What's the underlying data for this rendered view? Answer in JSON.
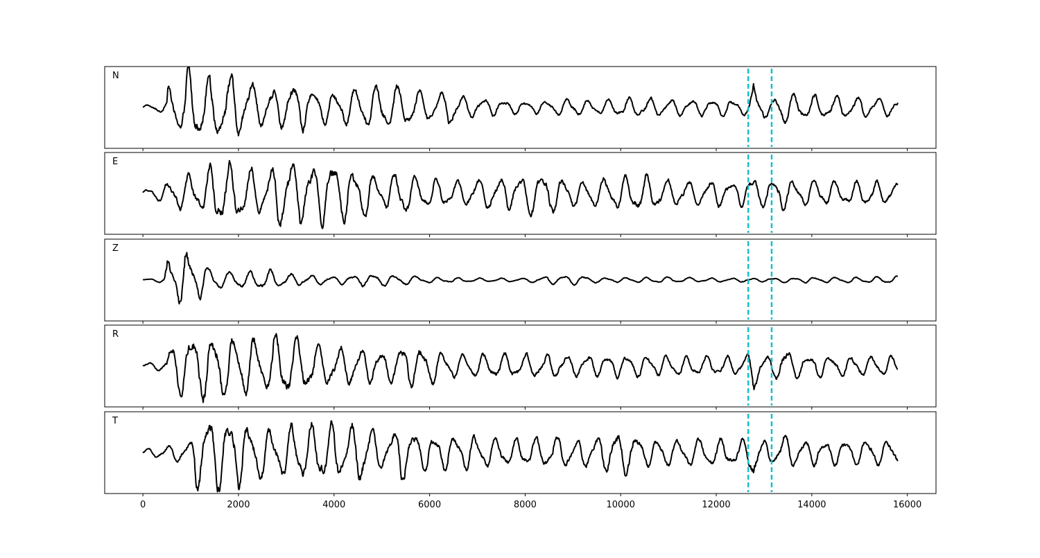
{
  "chart_data": {
    "type": "line",
    "title": "",
    "xlabel": "",
    "ylabel": "",
    "xlim": [
      -800,
      16600
    ],
    "x_ticks": [
      0,
      2000,
      4000,
      6000,
      8000,
      10000,
      12000,
      14000,
      16000
    ],
    "x_tick_labels": [
      "0",
      "2000",
      "4000",
      "6000",
      "8000",
      "10000",
      "12000",
      "14000",
      "16000"
    ],
    "x_range": [
      0,
      15800
    ],
    "grid": false,
    "line_color": "#000000",
    "marker_color": "#17becf",
    "markers": [
      {
        "style": "dashed",
        "x": 12670
      },
      {
        "style": "dashed",
        "x": 13160
      }
    ],
    "panels": [
      {
        "label": "N",
        "ylim": [
          -1,
          1
        ],
        "envelope": [
          [
            0,
            0.04
          ],
          [
            500,
            0.15
          ],
          [
            520,
            0.45
          ],
          [
            700,
            0.55
          ],
          [
            1000,
            0.9
          ],
          [
            1100,
            0.72
          ],
          [
            1600,
            0.72
          ],
          [
            2100,
            0.65
          ],
          [
            2500,
            0.42
          ],
          [
            3000,
            0.45
          ],
          [
            3100,
            0.6
          ],
          [
            3600,
            0.38
          ],
          [
            4000,
            0.32
          ],
          [
            4200,
            0.38
          ],
          [
            5000,
            0.48
          ],
          [
            5600,
            0.42
          ],
          [
            6000,
            0.3
          ],
          [
            6400,
            0.38
          ],
          [
            6800,
            0.22
          ],
          [
            8000,
            0.12
          ],
          [
            8500,
            0.15
          ],
          [
            9000,
            0.2
          ],
          [
            9300,
            0.14
          ],
          [
            10000,
            0.2
          ],
          [
            10500,
            0.22
          ],
          [
            11000,
            0.18
          ],
          [
            12000,
            0.18
          ],
          [
            12500,
            0.16
          ],
          [
            12700,
            0.18
          ],
          [
            12780,
            0.62
          ],
          [
            12900,
            0.3
          ],
          [
            13200,
            0.15
          ],
          [
            13350,
            0.45
          ],
          [
            13600,
            0.28
          ],
          [
            15800,
            0.18
          ]
        ]
      },
      {
        "label": "E",
        "ylim": [
          -1,
          1
        ],
        "envelope": [
          [
            0,
            0.08
          ],
          [
            400,
            0.18
          ],
          [
            600,
            0.3
          ],
          [
            900,
            0.42
          ],
          [
            1200,
            0.35
          ],
          [
            1500,
            0.72
          ],
          [
            1800,
            0.62
          ],
          [
            2000,
            0.6
          ],
          [
            2300,
            0.5
          ],
          [
            2600,
            0.48
          ],
          [
            3000,
            0.82
          ],
          [
            3100,
            0.68
          ],
          [
            3500,
            0.62
          ],
          [
            4000,
            0.8
          ],
          [
            4300,
            0.52
          ],
          [
            4600,
            0.58
          ],
          [
            5000,
            0.28
          ],
          [
            5400,
            0.52
          ],
          [
            5600,
            0.38
          ],
          [
            6000,
            0.32
          ],
          [
            6500,
            0.28
          ],
          [
            7000,
            0.3
          ],
          [
            8200,
            0.45
          ],
          [
            8700,
            0.38
          ],
          [
            9000,
            0.28
          ],
          [
            9500,
            0.3
          ],
          [
            10000,
            0.36
          ],
          [
            10500,
            0.42
          ],
          [
            11000,
            0.28
          ],
          [
            11500,
            0.25
          ],
          [
            12000,
            0.28
          ],
          [
            12500,
            0.26
          ],
          [
            12680,
            0.3
          ],
          [
            12780,
            0.52
          ],
          [
            12900,
            0.26
          ],
          [
            13200,
            0.3
          ],
          [
            13300,
            0.38
          ],
          [
            13600,
            0.28
          ],
          [
            14500,
            0.26
          ],
          [
            15300,
            0.26
          ],
          [
            15800,
            0.22
          ]
        ]
      },
      {
        "label": "Z",
        "ylim": [
          -1,
          1
        ],
        "envelope": [
          [
            0,
            0.02
          ],
          [
            300,
            0.04
          ],
          [
            450,
            0.08
          ],
          [
            520,
            0.75
          ],
          [
            580,
            0.35
          ],
          [
            700,
            0.3
          ],
          [
            880,
            0.88
          ],
          [
            950,
            0.5
          ],
          [
            1200,
            0.4
          ],
          [
            1400,
            0.28
          ],
          [
            1700,
            0.16
          ],
          [
            2600,
            0.22
          ],
          [
            3000,
            0.14
          ],
          [
            4000,
            0.08
          ],
          [
            4700,
            0.14
          ],
          [
            5500,
            0.1
          ],
          [
            6000,
            0.06
          ],
          [
            7000,
            0.04
          ],
          [
            8000,
            0.04
          ],
          [
            8700,
            0.1
          ],
          [
            9200,
            0.1
          ],
          [
            9500,
            0.05
          ],
          [
            10000,
            0.05
          ],
          [
            11000,
            0.06
          ],
          [
            12000,
            0.04
          ],
          [
            13000,
            0.04
          ],
          [
            14000,
            0.06
          ],
          [
            15000,
            0.06
          ],
          [
            15800,
            0.08
          ]
        ]
      },
      {
        "label": "R",
        "ylim": [
          -1,
          1
        ],
        "envelope": [
          [
            0,
            0.06
          ],
          [
            500,
            0.12
          ],
          [
            520,
            0.45
          ],
          [
            900,
            0.65
          ],
          [
            1000,
            0.85
          ],
          [
            1100,
            0.72
          ],
          [
            1600,
            0.68
          ],
          [
            2100,
            0.65
          ],
          [
            2500,
            0.5
          ],
          [
            3000,
            0.78
          ],
          [
            3100,
            0.6
          ],
          [
            4000,
            0.42
          ],
          [
            4600,
            0.4
          ],
          [
            5000,
            0.3
          ],
          [
            5500,
            0.48
          ],
          [
            6000,
            0.4
          ],
          [
            6400,
            0.26
          ],
          [
            7000,
            0.26
          ],
          [
            8000,
            0.26
          ],
          [
            8700,
            0.26
          ],
          [
            9000,
            0.22
          ],
          [
            10000,
            0.24
          ],
          [
            11000,
            0.22
          ],
          [
            12000,
            0.2
          ],
          [
            12600,
            0.2
          ],
          [
            12700,
            0.3
          ],
          [
            12780,
            0.58
          ],
          [
            12900,
            0.26
          ],
          [
            13200,
            0.2
          ],
          [
            13400,
            0.5
          ],
          [
            13600,
            0.26
          ],
          [
            14500,
            0.22
          ],
          [
            15800,
            0.2
          ]
        ]
      },
      {
        "label": "T",
        "ylim": [
          -1,
          1
        ],
        "envelope": [
          [
            0,
            0.08
          ],
          [
            400,
            0.12
          ],
          [
            700,
            0.2
          ],
          [
            1000,
            0.25
          ],
          [
            1100,
            0.85
          ],
          [
            1500,
            0.78
          ],
          [
            2000,
            0.72
          ],
          [
            2300,
            0.6
          ],
          [
            2800,
            0.45
          ],
          [
            3000,
            0.6
          ],
          [
            3500,
            0.6
          ],
          [
            4000,
            0.65
          ],
          [
            4300,
            0.55
          ],
          [
            4600,
            0.68
          ],
          [
            5000,
            0.3
          ],
          [
            5400,
            0.62
          ],
          [
            5800,
            0.4
          ],
          [
            6200,
            0.35
          ],
          [
            6800,
            0.38
          ],
          [
            7500,
            0.3
          ],
          [
            8000,
            0.3
          ],
          [
            8500,
            0.35
          ],
          [
            9000,
            0.3
          ],
          [
            9500,
            0.35
          ],
          [
            10000,
            0.5
          ],
          [
            10500,
            0.3
          ],
          [
            11000,
            0.28
          ],
          [
            12000,
            0.3
          ],
          [
            12600,
            0.28
          ],
          [
            12700,
            0.4
          ],
          [
            12770,
            0.8
          ],
          [
            12900,
            0.26
          ],
          [
            13200,
            0.24
          ],
          [
            13400,
            0.42
          ],
          [
            13600,
            0.3
          ],
          [
            14500,
            0.26
          ],
          [
            15800,
            0.28
          ]
        ]
      }
    ]
  }
}
